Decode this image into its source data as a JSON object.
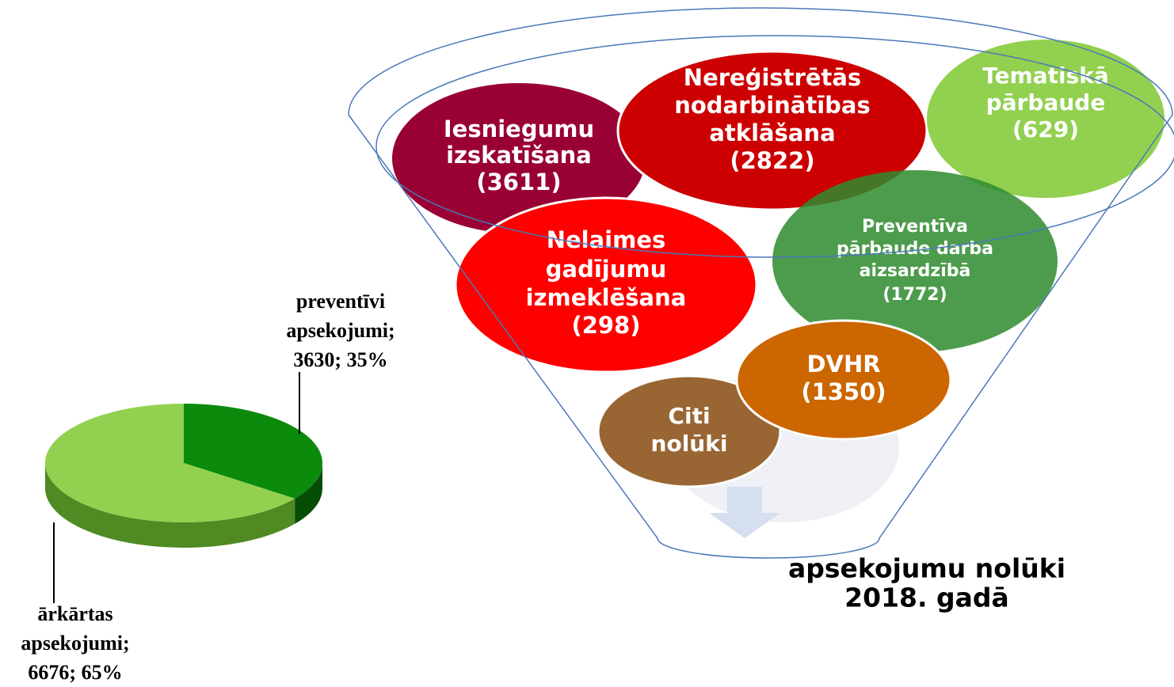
{
  "chart_data": {
    "type": "pie",
    "categories": [
      "preventīvi apsekojumi;",
      "ārkārtas apsekojumi;"
    ],
    "values": [
      3630,
      6676
    ],
    "value_labels": [
      "3630; 35%",
      "6676; 65%"
    ],
    "colors": [
      "#0b8a0b",
      "#92d050"
    ]
  },
  "funnel": {
    "title": [
      "apsekojumu nolūki",
      "2018. gadā"
    ],
    "nodes": [
      {
        "lines": [
          "Iesniegumu",
          "izskatīšana",
          "(3611)"
        ],
        "color": "#990033"
      },
      {
        "lines": [
          "Nereģistrētās",
          "nodarbinātības",
          "atklāšana",
          "(2822)"
        ],
        "color": "#cc0000"
      },
      {
        "lines": [
          "Tematiskā",
          "pārbaude",
          "(629)"
        ],
        "color": "#92d050"
      },
      {
        "lines": [
          "Preventīva",
          "pārbaude darba",
          "aizsardzībā",
          "(1772)"
        ],
        "color": "#2e8b2e"
      },
      {
        "lines": [
          "Nelaimes",
          "gadījumu",
          "izmeklēšana",
          "(298)"
        ],
        "color": "#ff0000"
      },
      {
        "lines": [
          "DVHR",
          "(1350)"
        ],
        "color": "#cc6600"
      },
      {
        "lines": [
          "Citi",
          "nolūki"
        ],
        "color": "#996633"
      }
    ]
  }
}
